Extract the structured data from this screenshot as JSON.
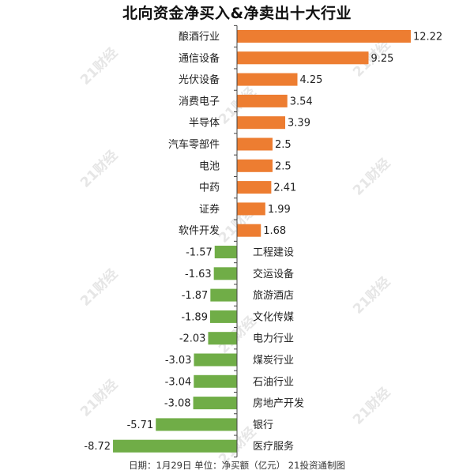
{
  "title": "北向资金净买入&净卖出十大行业",
  "footer": "日期：1月29日  单位：净买额（亿元）  21投资通制图",
  "watermark": "21财经",
  "colors": {
    "positive": "#ED7D31",
    "negative": "#70AD47",
    "axis": "#444444",
    "text": "#222222"
  },
  "chart_data": {
    "type": "bar",
    "orientation": "horizontal",
    "categories": [
      "酿酒行业",
      "通信设备",
      "光伏设备",
      "消费电子",
      "半导体",
      "汽车零部件",
      "电池",
      "中药",
      "证券",
      "软件开发",
      "工程建设",
      "交运设备",
      "旅游酒店",
      "文化传媒",
      "电力行业",
      "煤炭行业",
      "石油行业",
      "房地产开发",
      "银行",
      "医疗服务"
    ],
    "values": [
      12.22,
      9.25,
      4.25,
      3.54,
      3.39,
      2.5,
      2.5,
      2.41,
      1.99,
      1.68,
      -1.57,
      -1.63,
      -1.87,
      -1.89,
      -2.03,
      -3.03,
      -3.04,
      -3.08,
      -5.71,
      -8.72
    ],
    "value_labels": [
      "12.22",
      "9.25",
      "4.25",
      "3.54",
      "3.39",
      "2.5",
      "2.5",
      "2.41",
      "1.99",
      "1.68",
      "-1.57",
      "-1.63",
      "-1.87",
      "-1.89",
      "-2.03",
      "-3.03",
      "-3.04",
      "-3.08",
      "-5.71",
      "-8.72"
    ],
    "xlim": [
      -8.72,
      12.22
    ],
    "grid": false,
    "legend": "none"
  }
}
